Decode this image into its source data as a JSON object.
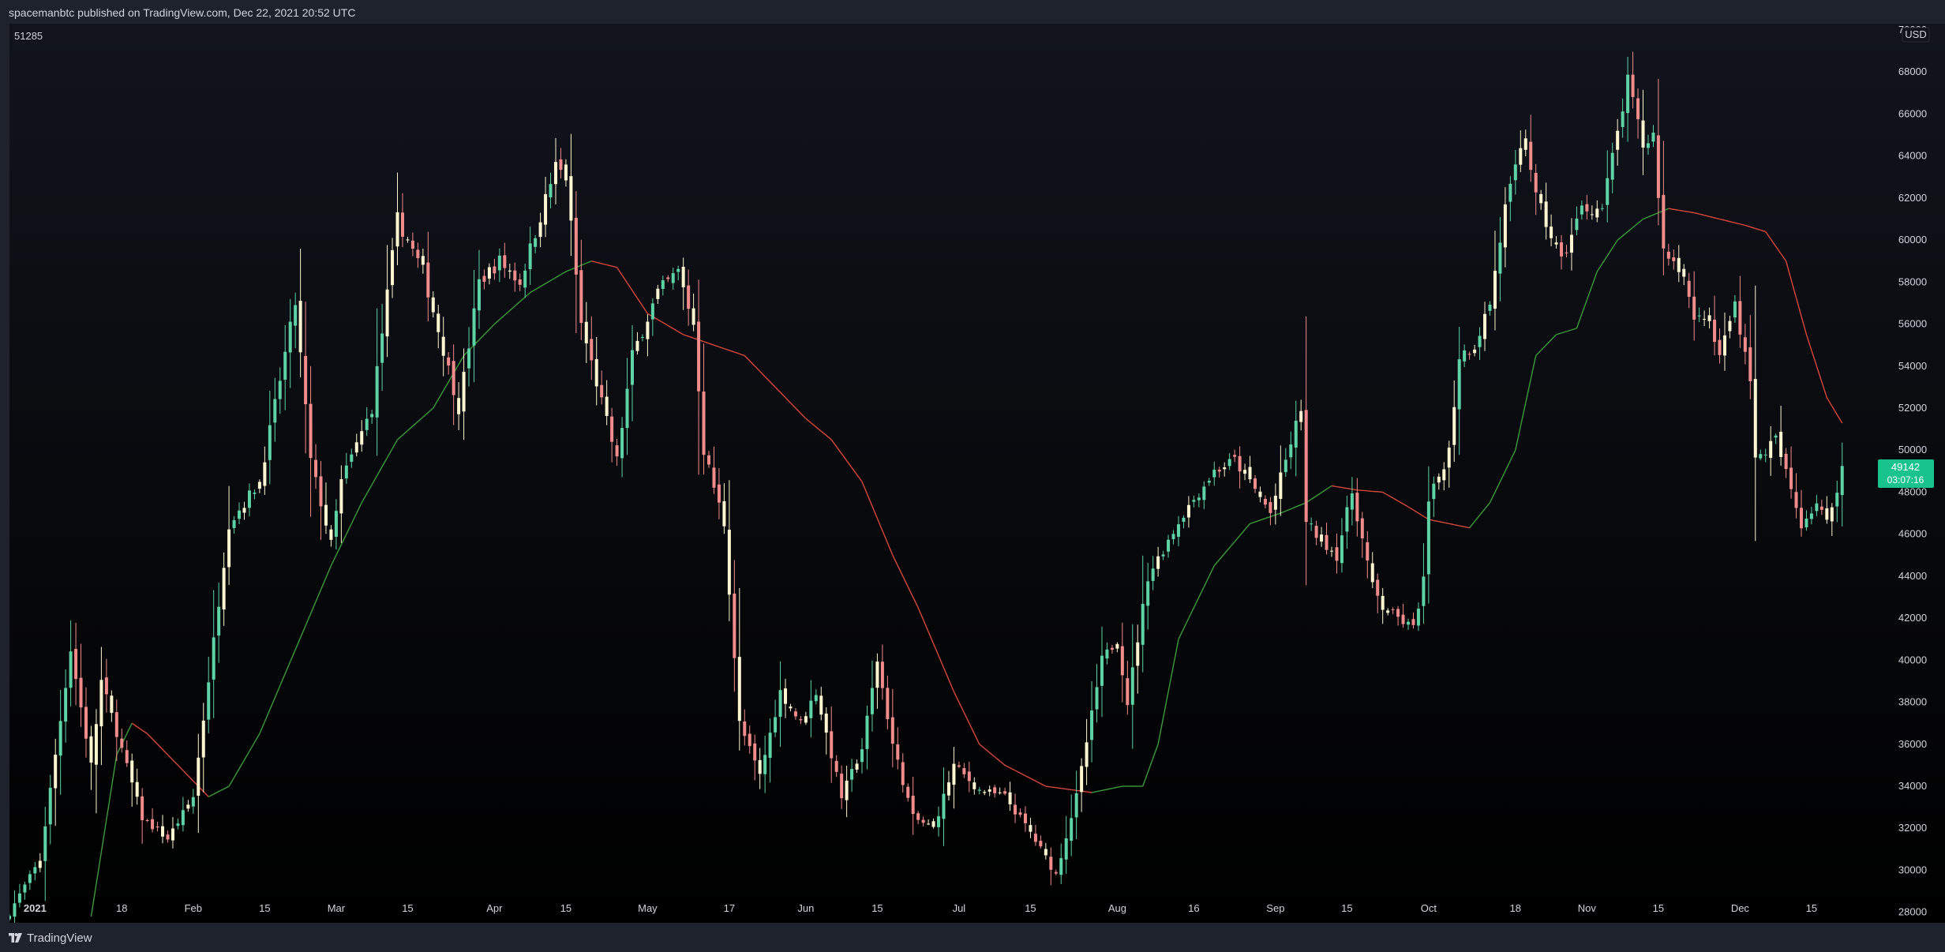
{
  "header": {
    "text": "spacemanbtc published on TradingView.com, Dec 22, 2021 20:52 UTC"
  },
  "footer": {
    "brand": "TradingView",
    "logo_icon": "tradingview-logo-icon"
  },
  "chart": {
    "indicator_value": "51285",
    "indicator_color": "#ef5350",
    "currency": "USD",
    "last_price": "49142",
    "countdown": "03:07:16",
    "colors": {
      "background_top": "#11141c",
      "background_bottom": "#000000",
      "up_candle": "#5ed3a6",
      "down_candle": "#f28c8c",
      "inside_candle": "#fff5d1",
      "ma_up": "#3c9b3c",
      "ma_down": "#d9473d",
      "price_tag": "#19c38c"
    }
  },
  "chart_data": {
    "type": "candlestick",
    "title": "",
    "interval": "1D",
    "x_tick_labels": [
      "2021",
      "18",
      "Feb",
      "15",
      "Mar",
      "15",
      "Apr",
      "15",
      "May",
      "17",
      "Jun",
      "15",
      "Jul",
      "15",
      "Aug",
      "16",
      "Sep",
      "15",
      "Oct",
      "18",
      "Nov",
      "15",
      "Dec",
      "15"
    ],
    "x_tick_dates": [
      "2021-01-01",
      "2021-01-18",
      "2021-02-01",
      "2021-02-15",
      "2021-03-01",
      "2021-03-15",
      "2021-04-01",
      "2021-04-15",
      "2021-05-01",
      "2021-05-17",
      "2021-06-01",
      "2021-06-15",
      "2021-07-01",
      "2021-07-15",
      "2021-08-01",
      "2021-08-16",
      "2021-09-01",
      "2021-09-15",
      "2021-10-01",
      "2021-10-18",
      "2021-11-01",
      "2021-11-15",
      "2021-12-01",
      "2021-12-15"
    ],
    "y_tick_labels": [
      "28000",
      "30000",
      "32000",
      "34000",
      "36000",
      "38000",
      "40000",
      "42000",
      "44000",
      "46000",
      "48000",
      "50000",
      "52000",
      "54000",
      "56000",
      "58000",
      "60000",
      "62000",
      "64000",
      "66000",
      "68000",
      "70000"
    ],
    "ylim": [
      27500,
      70300
    ],
    "xlim": [
      "2020-12-27",
      "2021-12-28"
    ],
    "price_anchors": [
      [
        "2020-12-27",
        28000
      ],
      [
        "2021-01-02",
        30500
      ],
      [
        "2021-01-08",
        40500
      ],
      [
        "2021-01-12",
        35000
      ],
      [
        "2021-01-14",
        39000
      ],
      [
        "2021-01-22",
        32500
      ],
      [
        "2021-01-27",
        31500
      ],
      [
        "2021-02-01",
        33500
      ],
      [
        "2021-02-08",
        46500
      ],
      [
        "2021-02-14",
        48500
      ],
      [
        "2021-02-21",
        57000
      ],
      [
        "2021-02-24",
        49500
      ],
      [
        "2021-02-28",
        45500
      ],
      [
        "2021-03-02",
        48500
      ],
      [
        "2021-03-08",
        52000
      ],
      [
        "2021-03-13",
        61000
      ],
      [
        "2021-03-18",
        58500
      ],
      [
        "2021-03-25",
        52000
      ],
      [
        "2021-03-29",
        58000
      ],
      [
        "2021-04-02",
        59000
      ],
      [
        "2021-04-06",
        58000
      ],
      [
        "2021-04-13",
        63500
      ],
      [
        "2021-04-15",
        63000
      ],
      [
        "2021-04-18",
        56000
      ],
      [
        "2021-04-25",
        49500
      ],
      [
        "2021-04-28",
        54500
      ],
      [
        "2021-05-03",
        57500
      ],
      [
        "2021-05-07",
        58500
      ],
      [
        "2021-05-10",
        56000
      ],
      [
        "2021-05-12",
        50000
      ],
      [
        "2021-05-16",
        46500
      ],
      [
        "2021-05-19",
        37000
      ],
      [
        "2021-05-23",
        34500
      ],
      [
        "2021-05-27",
        38500
      ],
      [
        "2021-05-31",
        37000
      ],
      [
        "2021-06-03",
        38500
      ],
      [
        "2021-06-08",
        33500
      ],
      [
        "2021-06-12",
        35800
      ],
      [
        "2021-06-15",
        40000
      ],
      [
        "2021-06-18",
        36000
      ],
      [
        "2021-06-22",
        32500
      ],
      [
        "2021-06-26",
        32000
      ],
      [
        "2021-06-30",
        35000
      ],
      [
        "2021-07-05",
        33800
      ],
      [
        "2021-07-10",
        33500
      ],
      [
        "2021-07-15",
        31800
      ],
      [
        "2021-07-20",
        29800
      ],
      [
        "2021-07-24",
        33500
      ],
      [
        "2021-07-29",
        40000
      ],
      [
        "2021-08-01",
        41000
      ],
      [
        "2021-08-03",
        38000
      ],
      [
        "2021-08-07",
        44000
      ],
      [
        "2021-08-14",
        47000
      ],
      [
        "2021-08-20",
        49000
      ],
      [
        "2021-08-24",
        49500
      ],
      [
        "2021-08-27",
        48500
      ],
      [
        "2021-08-31",
        47000
      ],
      [
        "2021-09-06",
        52000
      ],
      [
        "2021-09-07",
        46500
      ],
      [
        "2021-09-13",
        45000
      ],
      [
        "2021-09-16",
        48000
      ],
      [
        "2021-09-20",
        43500
      ],
      [
        "2021-09-22",
        42500
      ],
      [
        "2021-09-28",
        41500
      ],
      [
        "2021-09-30",
        43800
      ],
      [
        "2021-10-01",
        47500
      ],
      [
        "2021-10-05",
        50000
      ],
      [
        "2021-10-07",
        54500
      ],
      [
        "2021-10-10",
        55000
      ],
      [
        "2021-10-13",
        57000
      ],
      [
        "2021-10-16",
        61500
      ],
      [
        "2021-10-20",
        65000
      ],
      [
        "2021-10-22",
        62000
      ],
      [
        "2021-10-27",
        59000
      ],
      [
        "2021-10-31",
        61500
      ],
      [
        "2021-11-04",
        61500
      ],
      [
        "2021-11-09",
        67500
      ],
      [
        "2021-11-12",
        64500
      ],
      [
        "2021-11-14",
        65000
      ],
      [
        "2021-11-16",
        59500
      ],
      [
        "2021-11-20",
        58500
      ],
      [
        "2021-11-22",
        56000
      ],
      [
        "2021-11-24",
        56500
      ],
      [
        "2021-11-27",
        54500
      ],
      [
        "2021-11-30",
        57000
      ],
      [
        "2021-12-03",
        53500
      ],
      [
        "2021-12-04",
        49500
      ],
      [
        "2021-12-08",
        50500
      ],
      [
        "2021-12-13",
        46500
      ],
      [
        "2021-12-16",
        47500
      ],
      [
        "2021-12-18",
        46500
      ],
      [
        "2021-12-21",
        49142
      ]
    ],
    "ma_anchors": [
      [
        "2021-01-12",
        27800
      ],
      [
        "2021-01-17",
        35500
      ],
      [
        "2021-01-20",
        37000
      ],
      [
        "2021-01-23",
        36500
      ],
      [
        "2021-01-27",
        35500
      ],
      [
        "2021-01-31",
        34500
      ],
      [
        "2021-02-04",
        33500
      ],
      [
        "2021-02-08",
        34000
      ],
      [
        "2021-02-14",
        36500
      ],
      [
        "2021-02-21",
        40500
      ],
      [
        "2021-02-28",
        44500
      ],
      [
        "2021-03-06",
        47500
      ],
      [
        "2021-03-13",
        50500
      ],
      [
        "2021-03-20",
        52000
      ],
      [
        "2021-03-26",
        54500
      ],
      [
        "2021-04-01",
        56000
      ],
      [
        "2021-04-08",
        57500
      ],
      [
        "2021-04-15",
        58500
      ],
      [
        "2021-04-20",
        59000
      ],
      [
        "2021-04-25",
        58700
      ],
      [
        "2021-05-01",
        56500
      ],
      [
        "2021-05-08",
        55500
      ],
      [
        "2021-05-14",
        55000
      ],
      [
        "2021-05-20",
        54500
      ],
      [
        "2021-05-26",
        53000
      ],
      [
        "2021-06-01",
        51500
      ],
      [
        "2021-06-06",
        50500
      ],
      [
        "2021-06-12",
        48500
      ],
      [
        "2021-06-18",
        45000
      ],
      [
        "2021-06-23",
        42500
      ],
      [
        "2021-06-30",
        38500
      ],
      [
        "2021-07-05",
        36000
      ],
      [
        "2021-07-10",
        35000
      ],
      [
        "2021-07-18",
        34000
      ],
      [
        "2021-07-27",
        33700
      ],
      [
        "2021-08-02",
        34000
      ],
      [
        "2021-08-06",
        34000
      ],
      [
        "2021-08-09",
        36000
      ],
      [
        "2021-08-13",
        41000
      ],
      [
        "2021-08-20",
        44500
      ],
      [
        "2021-08-27",
        46500
      ],
      [
        "2021-09-02",
        47000
      ],
      [
        "2021-09-07",
        47500
      ],
      [
        "2021-09-12",
        48300
      ],
      [
        "2021-09-17",
        48100
      ],
      [
        "2021-09-22",
        48000
      ],
      [
        "2021-09-27",
        47300
      ],
      [
        "2021-10-01",
        46700
      ],
      [
        "2021-10-05",
        46500
      ],
      [
        "2021-10-09",
        46300
      ],
      [
        "2021-10-13",
        47500
      ],
      [
        "2021-10-18",
        50000
      ],
      [
        "2021-10-22",
        54500
      ],
      [
        "2021-10-26",
        55500
      ],
      [
        "2021-10-30",
        55800
      ],
      [
        "2021-11-03",
        58500
      ],
      [
        "2021-11-07",
        60000
      ],
      [
        "2021-11-12",
        61000
      ],
      [
        "2021-11-17",
        61500
      ],
      [
        "2021-11-22",
        61300
      ],
      [
        "2021-11-27",
        61000
      ],
      [
        "2021-12-02",
        60700
      ],
      [
        "2021-12-06",
        60400
      ],
      [
        "2021-12-10",
        59000
      ],
      [
        "2021-12-14",
        55500
      ],
      [
        "2021-12-18",
        52500
      ],
      [
        "2021-12-21",
        51285
      ]
    ],
    "last_price": 49142,
    "indicator_last": 51285
  }
}
